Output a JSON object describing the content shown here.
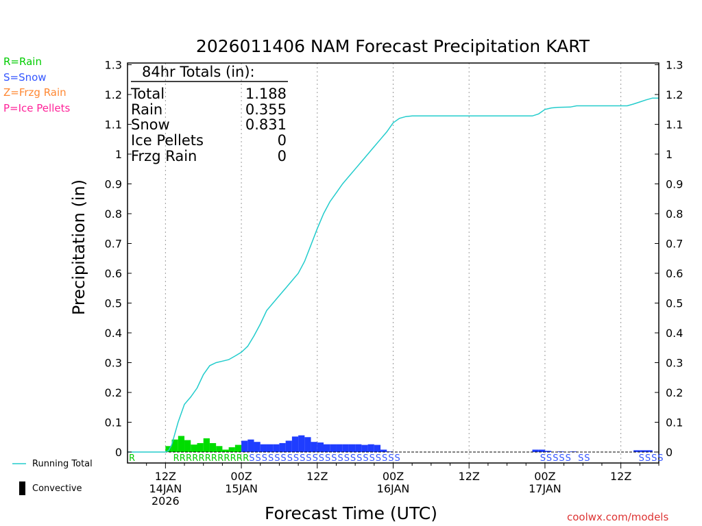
{
  "chart_data": {
    "type": "bar",
    "title": "2026011406 NAM Forecast Precipitation KART",
    "xlabel": "Forecast Time (UTC)",
    "ylabel": "Precipitation (in)",
    "ylim": [
      0,
      1.3
    ],
    "y_ticks": [
      "0",
      "0.1",
      "0.2",
      "0.3",
      "0.4",
      "0.5",
      "0.6",
      "0.7",
      "0.8",
      "0.9",
      "1",
      "1.1",
      "1.2",
      "1.3"
    ],
    "xlim_hours": [
      6,
      90
    ],
    "x_ticks": [
      {
        "hour": 12,
        "labels": [
          "12Z",
          "14JAN",
          "2026"
        ]
      },
      {
        "hour": 24,
        "labels": [
          "00Z",
          "15JAN"
        ]
      },
      {
        "hour": 36,
        "labels": [
          "12Z"
        ]
      },
      {
        "hour": 48,
        "labels": [
          "00Z",
          "16JAN"
        ]
      },
      {
        "hour": 60,
        "labels": [
          "12Z"
        ]
      },
      {
        "hour": 72,
        "labels": [
          "00Z",
          "17JAN"
        ]
      },
      {
        "hour": 84,
        "labels": [
          "12Z"
        ]
      }
    ],
    "totals_box": {
      "heading": "84hr Totals (in):",
      "rows": [
        {
          "label": "Total",
          "value": "1.188"
        },
        {
          "label": "Rain",
          "value": "0.355"
        },
        {
          "label": "Snow",
          "value": "0.831"
        },
        {
          "label": "Ice Pellets",
          "value": "0"
        },
        {
          "label": "Frzg Rain",
          "value": "0"
        }
      ]
    },
    "type_legend": [
      {
        "text": "R=Rain",
        "color": "#00cc00"
      },
      {
        "text": "S=Snow",
        "color": "#3355ff"
      },
      {
        "text": "Z=Frzg Rain",
        "color": "#ff8833"
      },
      {
        "text": "P=Ice Pellets",
        "color": "#ff2299"
      }
    ],
    "key_legend": {
      "running_total": "Running Total",
      "convective": "Convective"
    },
    "credit": "coolwx.com/models",
    "colors": {
      "rain": "#00dd00",
      "snow": "#1f3dff",
      "running_total": "#22cccc",
      "rain_text": "#00cc00",
      "snow_text": "#3355ff",
      "credit": "#dd3333"
    },
    "series": [
      {
        "name": "Rain",
        "bar_start_hour": 13,
        "values": [
          0.02,
          0.042,
          0.054,
          0.04,
          0.025,
          0.03,
          0.046,
          0.03,
          0.02,
          0.008,
          0.016,
          0.024
        ]
      },
      {
        "name": "Snow",
        "bar_start_hour": 25,
        "values": [
          0.038,
          0.042,
          0.034,
          0.026,
          0.026,
          0.026,
          0.03,
          0.038,
          0.052,
          0.056,
          0.05,
          0.034,
          0.032,
          0.026,
          0.026,
          0.026,
          0.026,
          0.026,
          0.026,
          0.024,
          0.026,
          0.024,
          0.008,
          0.002
        ]
      },
      {
        "name": "Snow (17 JAN)",
        "bar_points": [
          [
            71,
            0.008
          ],
          [
            72,
            0.008
          ],
          [
            73,
            0.004
          ],
          [
            75,
            0.002
          ],
          [
            77,
            0.002
          ],
          [
            87,
            0.006
          ],
          [
            88,
            0.006
          ],
          [
            89,
            0.006
          ]
        ]
      },
      {
        "name": "Running Total",
        "type": "line",
        "points": [
          [
            6,
            0
          ],
          [
            12,
            0
          ],
          [
            12.5,
            0.005
          ],
          [
            13,
            0.025
          ],
          [
            14,
            0.1
          ],
          [
            15,
            0.16
          ],
          [
            16,
            0.185
          ],
          [
            17,
            0.215
          ],
          [
            18,
            0.26
          ],
          [
            19,
            0.29
          ],
          [
            20,
            0.3
          ],
          [
            21,
            0.305
          ],
          [
            22,
            0.31
          ],
          [
            23,
            0.322
          ],
          [
            24,
            0.335
          ],
          [
            25,
            0.355
          ],
          [
            26,
            0.39
          ],
          [
            27,
            0.43
          ],
          [
            28,
            0.475
          ],
          [
            29,
            0.5
          ],
          [
            30,
            0.525
          ],
          [
            31,
            0.55
          ],
          [
            32,
            0.575
          ],
          [
            33,
            0.6
          ],
          [
            34,
            0.64
          ],
          [
            35,
            0.695
          ],
          [
            36,
            0.75
          ],
          [
            37,
            0.8
          ],
          [
            38,
            0.84
          ],
          [
            39,
            0.87
          ],
          [
            40,
            0.9
          ],
          [
            41,
            0.925
          ],
          [
            42,
            0.95
          ],
          [
            43,
            0.975
          ],
          [
            44,
            1.0
          ],
          [
            45,
            1.025
          ],
          [
            46,
            1.05
          ],
          [
            47,
            1.075
          ],
          [
            48,
            1.105
          ],
          [
            49,
            1.12
          ],
          [
            50,
            1.126
          ],
          [
            51,
            1.128
          ],
          [
            52,
            1.128
          ],
          [
            70,
            1.128
          ],
          [
            71,
            1.135
          ],
          [
            72,
            1.15
          ],
          [
            73,
            1.155
          ],
          [
            74,
            1.157
          ],
          [
            76,
            1.158
          ],
          [
            77,
            1.162
          ],
          [
            84,
            1.162
          ],
          [
            85,
            1.162
          ],
          [
            86,
            1.168
          ],
          [
            87,
            1.175
          ],
          [
            88,
            1.182
          ],
          [
            89,
            1.188
          ],
          [
            90,
            1.188
          ]
        ]
      }
    ],
    "type_letters": [
      {
        "type": "rain",
        "start_hour": 6,
        "count": 1
      },
      {
        "type": "rain",
        "start_hour": 13,
        "count": 12
      },
      {
        "type": "snow",
        "start_hour": 25,
        "count": 24
      },
      {
        "type": "snow",
        "start_hour": 71,
        "count": 5
      },
      {
        "type": "snow",
        "start_hour": 77,
        "count": 2
      },
      {
        "type": "snow",
        "start_hour": 86.6,
        "count": 4
      }
    ]
  }
}
